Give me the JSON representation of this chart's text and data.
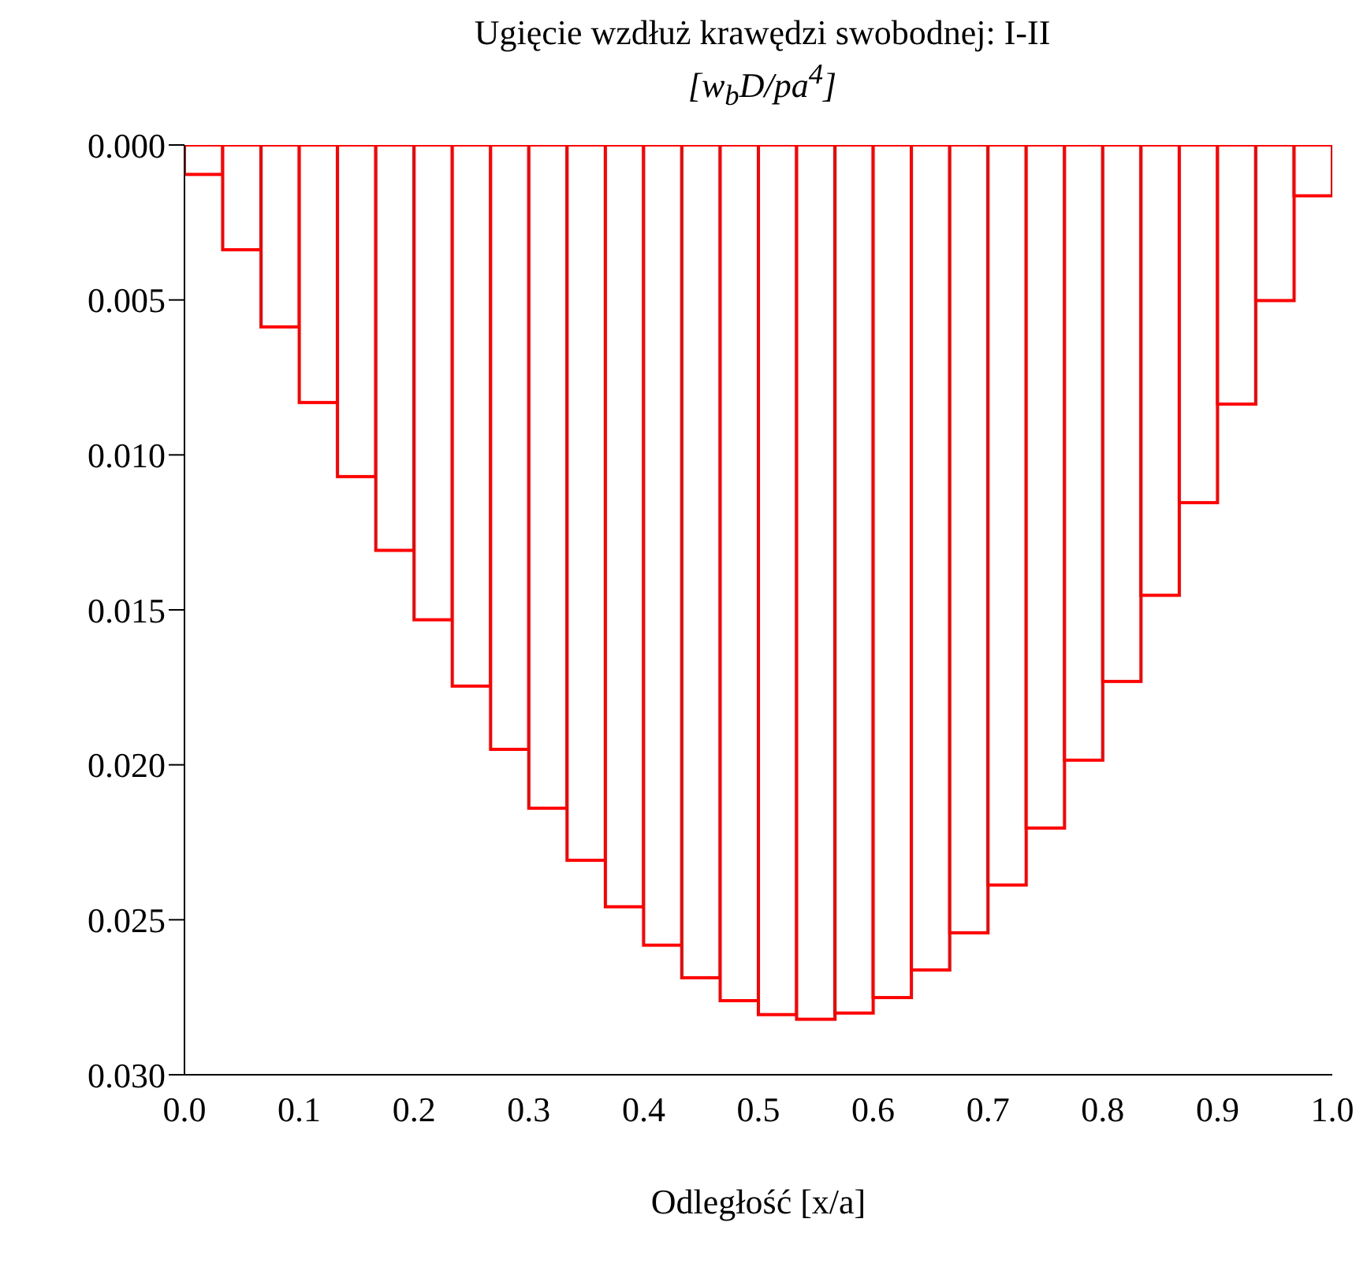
{
  "chart_data": {
    "type": "histogram",
    "title": "Ugięcie wzdłuż krawędzi swobodnej: I-II",
    "subtitle": "[w$_{b}$D/pa$^{4}$]",
    "xlabel": "Odległość [x/a]",
    "bins": [
      0,
      0.0333,
      0.0667,
      0.1,
      0.1333,
      0.1667,
      0.2,
      0.2333,
      0.2667,
      0.3,
      0.3333,
      0.3667,
      0.4,
      0.4333,
      0.4667,
      0.5,
      0.5333,
      0.5667,
      0.6,
      0.6333,
      0.6667,
      0.7,
      0.7333,
      0.7667,
      0.8,
      0.8333,
      0.8667,
      0.9,
      0.9333,
      0.9667,
      1
    ],
    "values": [
      0.00095,
      0.00338,
      0.00587,
      0.00831,
      0.0107,
      0.01308,
      0.01532,
      0.01746,
      0.0195,
      0.0214,
      0.02308,
      0.02458,
      0.02582,
      0.02687,
      0.02761,
      0.02806,
      0.02821,
      0.02801,
      0.02751,
      0.02662,
      0.02542,
      0.02388,
      0.02204,
      0.01985,
      0.01731,
      0.01453,
      0.01154,
      0.00836,
      0.00502,
      0.00164
    ],
    "color": "#ff0000",
    "xlim": [
      0,
      1
    ],
    "xticks": [
      {
        "value": 0,
        "label": "0.0"
      },
      0.1,
      0.2,
      0.3,
      0.4,
      0.5,
      0.6,
      0.7,
      0.8,
      0.9,
      {
        "value": 1,
        "label": "1.0"
      }
    ],
    "ylim": [
      0.03,
      0
    ],
    "yticks": [
      {
        "value": 0,
        "label": "0.000"
      },
      {
        "value": 0.005,
        "label": "0.005"
      },
      {
        "value": 0.01,
        "label": "0.010"
      },
      {
        "value": 0.015,
        "label": "0.015"
      },
      {
        "value": 0.02,
        "label": "0.020"
      },
      {
        "value": 0.025,
        "label": "0.025"
      },
      {
        "value": 0.03,
        "label": "0.030"
      }
    ],
    "grid": false,
    "legend": false
  }
}
